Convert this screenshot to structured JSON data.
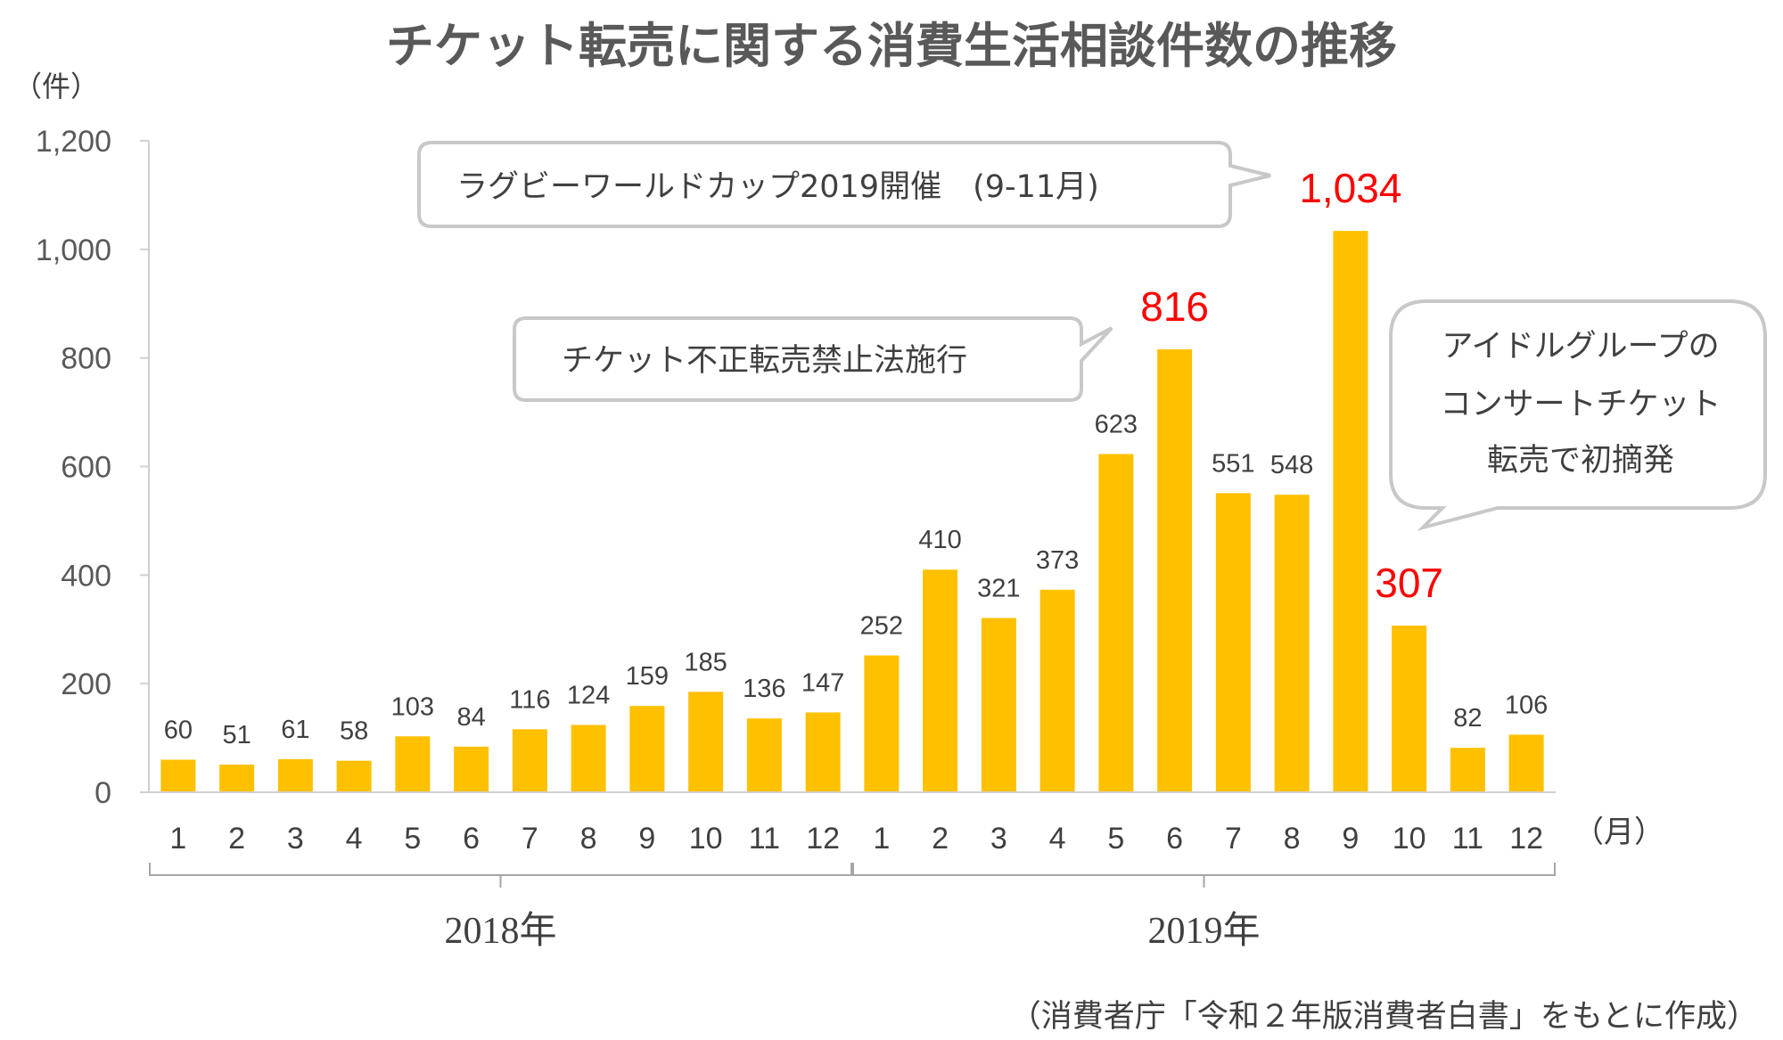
{
  "chart_data": {
    "type": "bar",
    "title": "チケット転売に関する消費生活相談件数の推移",
    "y_unit": "（件）",
    "x_unit": "（月）",
    "ylim": [
      0,
      1200
    ],
    "yticks": [
      "0",
      "200",
      "400",
      "600",
      "800",
      "1,000",
      "1,200"
    ],
    "ytick_values": [
      0,
      200,
      400,
      600,
      800,
      1000,
      1200
    ],
    "categories": [
      "1",
      "2",
      "3",
      "4",
      "5",
      "6",
      "7",
      "8",
      "9",
      "10",
      "11",
      "12",
      "1",
      "2",
      "3",
      "4",
      "5",
      "6",
      "7",
      "8",
      "9",
      "10",
      "11",
      "12"
    ],
    "values": [
      60,
      51,
      61,
      58,
      103,
      84,
      116,
      124,
      159,
      185,
      136,
      147,
      252,
      410,
      321,
      373,
      623,
      816,
      551,
      548,
      1034,
      307,
      82,
      106
    ],
    "value_labels": [
      "60",
      "51",
      "61",
      "58",
      "103",
      "84",
      "116",
      "124",
      "159",
      "185",
      "136",
      "147",
      "252",
      "410",
      "321",
      "373",
      "623",
      "816",
      "551",
      "548",
      "1,034",
      "307",
      "82",
      "106"
    ],
    "highlighted": [
      false,
      false,
      false,
      false,
      false,
      false,
      false,
      false,
      false,
      false,
      false,
      false,
      false,
      false,
      false,
      false,
      false,
      true,
      false,
      false,
      true,
      true,
      false,
      false
    ],
    "groups": [
      {
        "label": "2018年",
        "start": 0,
        "end": 11
      },
      {
        "label": "2019年",
        "start": 12,
        "end": 23
      }
    ],
    "bar_color": "#ffc000",
    "highlight_label_color": "#ff0000",
    "annotations": [
      {
        "lines": [
          "ラグビーワールドカップ2019開催　(9-11月)"
        ],
        "target_index": 20
      },
      {
        "lines": [
          "チケット不正転売禁止法施行"
        ],
        "target_index": 17
      },
      {
        "lines": [
          "アイドルグループの",
          "コンサートチケット",
          "転売で初摘発"
        ],
        "target_index": 21
      }
    ],
    "grid": false,
    "legend": "none"
  },
  "source": "（消費者庁「令和２年版消費者白書」をもとに作成）"
}
